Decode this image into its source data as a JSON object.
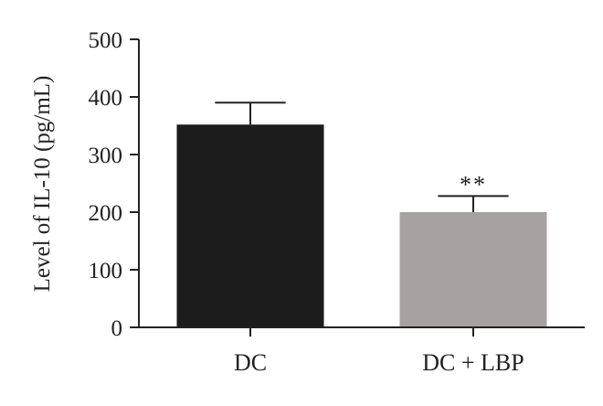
{
  "chart_data": {
    "type": "bar",
    "title": "",
    "xlabel": "",
    "ylabel": "Level of IL-10 (pg/mL)",
    "categories": [
      "DC",
      "DC + LBP"
    ],
    "values": [
      352,
      200
    ],
    "errors": [
      38,
      28
    ],
    "significance": [
      "",
      "**"
    ],
    "ylim": [
      0,
      500
    ],
    "yticks": [
      0,
      100,
      200,
      300,
      400,
      500
    ],
    "ytick_labels": [
      "0",
      "100",
      "200",
      "300",
      "400",
      "500"
    ],
    "bar_colors": [
      "#1c1c1c",
      "#a7a1a1"
    ],
    "grid": false,
    "legend": "none"
  }
}
